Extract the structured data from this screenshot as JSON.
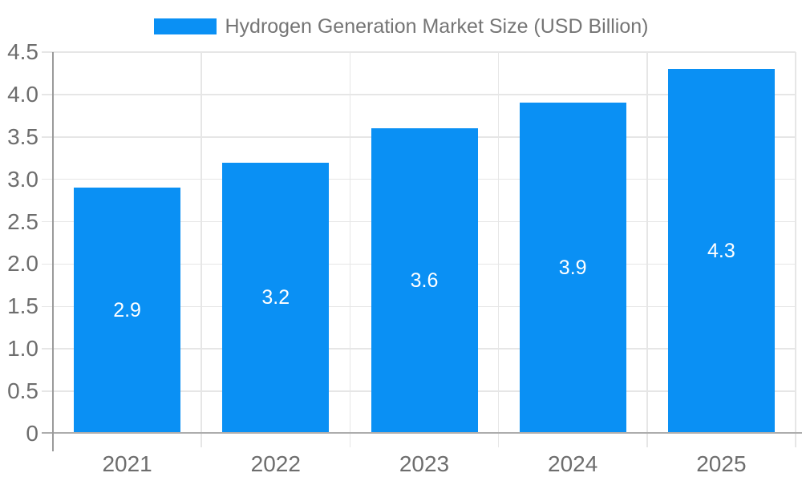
{
  "chart_data": {
    "type": "bar",
    "title": "Hydrogen Generation Market Size (USD Billion)",
    "categories": [
      "2021",
      "2022",
      "2023",
      "2024",
      "2025"
    ],
    "values": [
      2.9,
      3.2,
      3.6,
      3.9,
      4.3
    ],
    "bar_labels": [
      "2.9",
      "3.2",
      "3.6",
      "3.9",
      "4.3"
    ],
    "xlabel": "",
    "ylabel": "",
    "ylim": [
      0,
      4.5
    ],
    "yticks": [
      {
        "value": 0,
        "label": "0"
      },
      {
        "value": 0.5,
        "label": "0.5"
      },
      {
        "value": 1,
        "label": "1.0"
      },
      {
        "value": 1.5,
        "label": "1.5"
      },
      {
        "value": 2,
        "label": "2.0"
      },
      {
        "value": 2.5,
        "label": "2.5"
      },
      {
        "value": 3,
        "label": "3.0"
      },
      {
        "value": 3.5,
        "label": "3.5"
      },
      {
        "value": 4,
        "label": "4.0"
      },
      {
        "value": 4.5,
        "label": "4.5"
      }
    ],
    "grid": true,
    "legend_position": "top",
    "bar_color": "#0a90f4",
    "bar_label_color": "#ffffff"
  },
  "colors": {
    "background": "#ffffff",
    "bar": "#0a90f4",
    "gridline": "#e6e6e6",
    "y_axis_line": "#9a9a9a",
    "x_axis_line": "#adadad",
    "tick_text": "#6d6d6d",
    "title_text": "#757575",
    "bar_label": "#ffffff"
  }
}
